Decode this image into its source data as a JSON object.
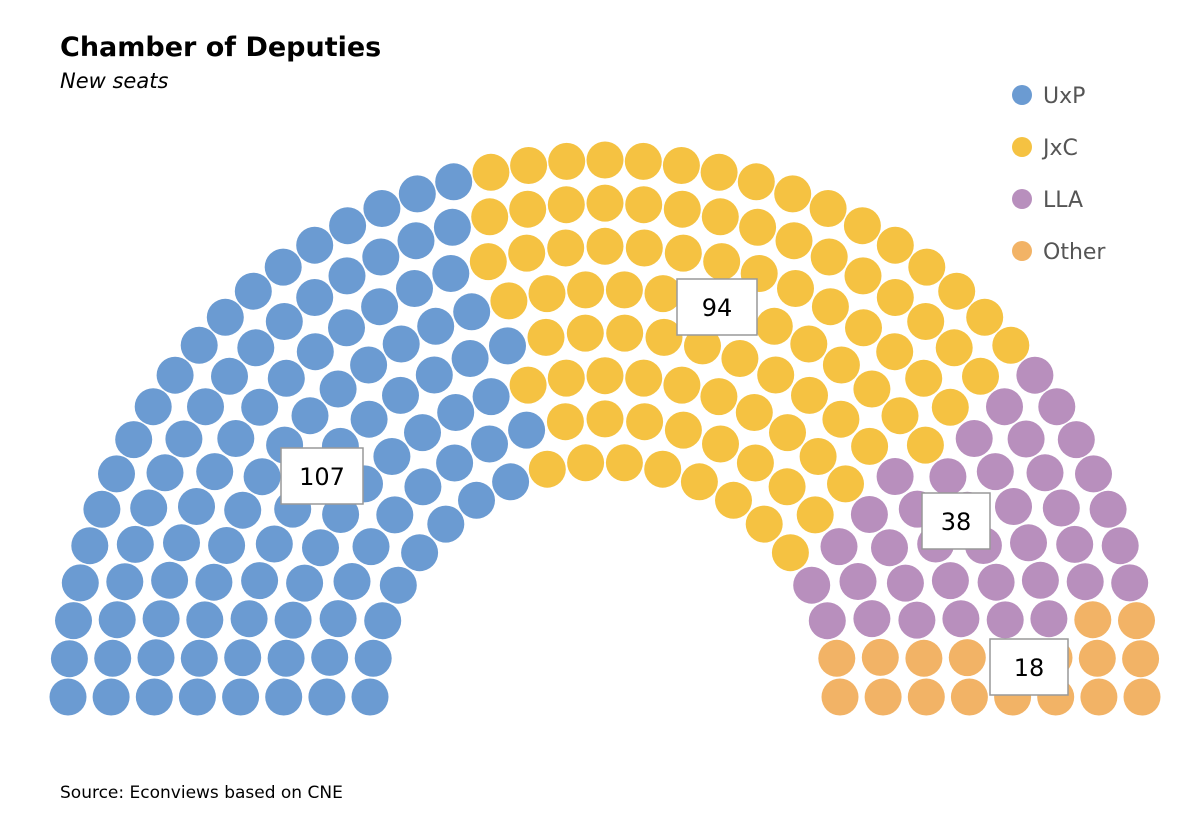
{
  "chart_data": {
    "type": "parliament",
    "title": "Chamber of Deputies",
    "subtitle": "New seats",
    "series": [
      {
        "name": "UxP",
        "value": 107,
        "color": "#6b9bd2"
      },
      {
        "name": "JxC",
        "value": 94,
        "color": "#f5c242"
      },
      {
        "name": "LLA",
        "value": 38,
        "color": "#b88fbd"
      },
      {
        "name": "Other",
        "value": 18,
        "color": "#f2b366"
      }
    ],
    "total_seats": 257,
    "legend_position": "top-right",
    "source": "Source: Econviews based on CNE"
  }
}
